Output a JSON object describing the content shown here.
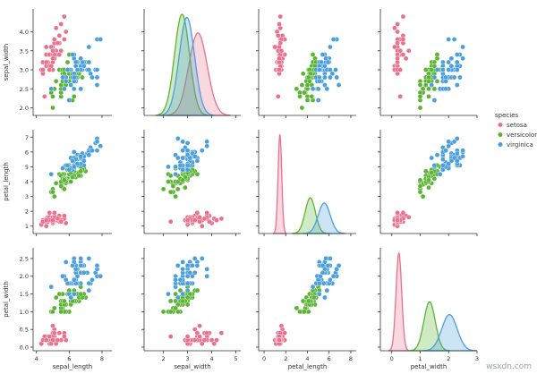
{
  "chart_data": {
    "type": "scatter",
    "kind": "pairplot",
    "hue_title": "species",
    "legend_placement": "right",
    "grid": false,
    "series": [
      {
        "name": "setosa",
        "color": "#e8728e"
      },
      {
        "name": "versicolor",
        "color": "#5bb434"
      },
      {
        "name": "virginica",
        "color": "#4b9fdb"
      }
    ],
    "variables": [
      {
        "name": "sepal_width",
        "range": [
          1.8,
          4.6
        ],
        "ticks": [
          "2.0",
          "2.5",
          "3.0",
          "3.5",
          "4.0"
        ],
        "tick_values": [
          2.0,
          2.5,
          3.0,
          3.5,
          4.0
        ]
      },
      {
        "name": "petal_length",
        "range": [
          0.5,
          7.5
        ],
        "ticks": [
          "1",
          "2",
          "3",
          "4",
          "5",
          "6",
          "7"
        ],
        "tick_values": [
          1,
          2,
          3,
          4,
          5,
          6,
          7
        ]
      },
      {
        "name": "petal_width",
        "range": [
          -0.1,
          2.8
        ],
        "ticks": [
          "0.0",
          "0.5",
          "1.0",
          "1.5",
          "2.0",
          "2.5"
        ],
        "tick_values": [
          0.0,
          0.5,
          1.0,
          1.5,
          2.0,
          2.5
        ]
      }
    ],
    "x_variables": [
      {
        "name": "sepal_length",
        "range": [
          3.8,
          8.6
        ],
        "ticks": [
          "4",
          "6",
          "8"
        ],
        "tick_values": [
          4,
          6,
          8
        ]
      },
      {
        "name": "sepal_width",
        "range": [
          1.2,
          5.2
        ],
        "ticks": [
          "2",
          "3",
          "4",
          "5"
        ],
        "tick_values": [
          2,
          3,
          4,
          5
        ]
      },
      {
        "name": "petal_length",
        "range": [
          -0.5,
          8.5
        ],
        "ticks": [
          "0",
          "2",
          "4",
          "6",
          "8"
        ],
        "tick_values": [
          0,
          2,
          4,
          6,
          8
        ]
      },
      {
        "name": "petal_width",
        "range": [
          -0.4,
          3.0
        ],
        "ticks": [
          "0",
          "1",
          "2",
          "3"
        ],
        "tick_values": [
          0,
          1,
          2,
          3
        ]
      }
    ],
    "density": {
      "sepal_width": [
        {
          "series": "setosa",
          "mean": 3.43,
          "sd": 0.38
        },
        {
          "series": "versicolor",
          "mean": 2.77,
          "sd": 0.31
        },
        {
          "series": "virginica",
          "mean": 2.97,
          "sd": 0.32
        }
      ],
      "petal_length": [
        {
          "series": "setosa",
          "mean": 1.46,
          "sd": 0.17
        },
        {
          "series": "versicolor",
          "mean": 4.26,
          "sd": 0.47
        },
        {
          "series": "virginica",
          "mean": 5.55,
          "sd": 0.55
        }
      ],
      "petal_width": [
        {
          "series": "setosa",
          "mean": 0.25,
          "sd": 0.1
        },
        {
          "series": "versicolor",
          "mean": 1.33,
          "sd": 0.2
        },
        {
          "series": "virginica",
          "mean": 2.03,
          "sd": 0.27
        }
      ]
    },
    "points": {
      "setosa": {
        "sepal_length": [
          5.1,
          4.9,
          4.7,
          4.6,
          5.0,
          5.4,
          4.6,
          5.0,
          4.4,
          4.9,
          5.4,
          4.8,
          4.8,
          4.3,
          5.8,
          5.7,
          5.4,
          5.1,
          5.7,
          5.1,
          5.4,
          5.1,
          4.6,
          5.1,
          4.8,
          5.0,
          5.0,
          5.2,
          5.2,
          4.7,
          4.8,
          5.4,
          5.2,
          5.5,
          4.9,
          5.0,
          5.5,
          4.9,
          4.4,
          5.1,
          5.0,
          4.5,
          4.4,
          5.0,
          5.1,
          4.8,
          5.1,
          4.6,
          5.3,
          5.0
        ],
        "sepal_width": [
          3.5,
          3.0,
          3.2,
          3.1,
          3.6,
          3.9,
          3.4,
          3.4,
          2.9,
          3.1,
          3.7,
          3.4,
          3.0,
          3.0,
          4.0,
          4.4,
          3.9,
          3.5,
          3.8,
          3.8,
          3.4,
          3.7,
          3.6,
          3.3,
          3.4,
          3.0,
          3.4,
          3.5,
          3.4,
          3.2,
          3.1,
          3.4,
          4.1,
          4.2,
          3.1,
          3.2,
          3.5,
          3.6,
          3.0,
          3.4,
          3.5,
          2.3,
          3.2,
          3.5,
          3.8,
          3.0,
          3.8,
          3.2,
          3.7,
          3.3
        ],
        "petal_length": [
          1.4,
          1.4,
          1.3,
          1.5,
          1.4,
          1.7,
          1.4,
          1.5,
          1.4,
          1.5,
          1.5,
          1.6,
          1.4,
          1.1,
          1.2,
          1.5,
          1.3,
          1.4,
          1.7,
          1.5,
          1.7,
          1.5,
          1.0,
          1.7,
          1.9,
          1.6,
          1.6,
          1.5,
          1.4,
          1.6,
          1.6,
          1.5,
          1.5,
          1.4,
          1.5,
          1.2,
          1.3,
          1.4,
          1.3,
          1.5,
          1.3,
          1.3,
          1.3,
          1.6,
          1.9,
          1.4,
          1.6,
          1.4,
          1.5,
          1.4
        ],
        "petal_width": [
          0.2,
          0.2,
          0.2,
          0.2,
          0.2,
          0.4,
          0.3,
          0.2,
          0.2,
          0.1,
          0.2,
          0.2,
          0.1,
          0.1,
          0.2,
          0.4,
          0.4,
          0.3,
          0.3,
          0.3,
          0.2,
          0.4,
          0.2,
          0.5,
          0.2,
          0.2,
          0.4,
          0.2,
          0.2,
          0.2,
          0.2,
          0.4,
          0.1,
          0.2,
          0.2,
          0.2,
          0.2,
          0.1,
          0.2,
          0.2,
          0.3,
          0.3,
          0.2,
          0.6,
          0.4,
          0.3,
          0.2,
          0.2,
          0.2,
          0.2
        ]
      },
      "versicolor": {
        "sepal_length": [
          7.0,
          6.4,
          6.9,
          5.5,
          6.5,
          5.7,
          6.3,
          4.9,
          6.6,
          5.2,
          5.0,
          5.9,
          6.0,
          6.1,
          5.6,
          6.7,
          5.6,
          5.8,
          6.2,
          5.6,
          5.9,
          6.1,
          6.3,
          6.1,
          6.4,
          6.6,
          6.8,
          6.7,
          6.0,
          5.7,
          5.5,
          5.5,
          5.8,
          6.0,
          5.4,
          6.0,
          6.7,
          6.3,
          5.6,
          5.5,
          5.5,
          6.1,
          5.8,
          5.0,
          5.6,
          5.7,
          5.7,
          6.2,
          5.1,
          5.7
        ],
        "sepal_width": [
          3.2,
          3.2,
          3.1,
          2.3,
          2.8,
          2.8,
          3.3,
          2.4,
          2.9,
          2.7,
          2.0,
          3.0,
          2.2,
          2.9,
          2.9,
          3.1,
          3.0,
          2.7,
          2.2,
          2.5,
          3.2,
          2.8,
          2.5,
          2.8,
          2.9,
          3.0,
          2.8,
          3.0,
          2.9,
          2.6,
          2.4,
          2.4,
          2.7,
          2.7,
          3.0,
          3.4,
          3.1,
          2.3,
          3.0,
          2.5,
          2.6,
          3.0,
          2.6,
          2.3,
          2.7,
          3.0,
          2.9,
          2.9,
          2.5,
          2.8
        ],
        "petal_length": [
          4.7,
          4.5,
          4.9,
          4.0,
          4.6,
          4.5,
          4.7,
          3.3,
          4.6,
          3.9,
          3.5,
          4.2,
          4.0,
          4.7,
          3.6,
          4.4,
          4.5,
          4.1,
          4.5,
          3.9,
          4.8,
          4.0,
          4.9,
          4.7,
          4.3,
          4.4,
          4.8,
          5.0,
          4.5,
          3.5,
          3.8,
          3.7,
          3.9,
          5.1,
          4.5,
          4.5,
          4.7,
          4.4,
          4.1,
          4.0,
          4.4,
          4.6,
          4.0,
          3.3,
          4.2,
          4.2,
          4.2,
          4.3,
          3.0,
          4.1
        ],
        "petal_width": [
          1.4,
          1.5,
          1.5,
          1.3,
          1.5,
          1.3,
          1.6,
          1.0,
          1.3,
          1.4,
          1.0,
          1.5,
          1.0,
          1.4,
          1.3,
          1.4,
          1.5,
          1.0,
          1.5,
          1.1,
          1.8,
          1.3,
          1.5,
          1.2,
          1.3,
          1.4,
          1.4,
          1.7,
          1.5,
          1.0,
          1.1,
          1.0,
          1.2,
          1.6,
          1.5,
          1.6,
          1.5,
          1.3,
          1.3,
          1.3,
          1.2,
          1.4,
          1.2,
          1.0,
          1.3,
          1.2,
          1.3,
          1.3,
          1.1,
          1.3
        ]
      },
      "virginica": {
        "sepal_length": [
          6.3,
          5.8,
          7.1,
          6.3,
          6.5,
          7.6,
          4.9,
          7.3,
          6.7,
          7.2,
          6.5,
          6.4,
          6.8,
          5.7,
          5.8,
          6.4,
          6.5,
          7.7,
          7.7,
          6.0,
          6.9,
          5.6,
          7.7,
          6.3,
          6.7,
          7.2,
          6.2,
          6.1,
          6.4,
          7.2,
          7.4,
          7.9,
          6.4,
          6.3,
          6.1,
          7.7,
          6.3,
          6.4,
          6.0,
          6.9,
          6.7,
          6.9,
          5.8,
          6.8,
          6.7,
          6.7,
          6.3,
          6.5,
          6.2,
          5.9
        ],
        "sepal_width": [
          3.3,
          2.7,
          3.0,
          2.9,
          3.0,
          3.0,
          2.5,
          2.9,
          2.5,
          3.6,
          3.2,
          2.7,
          3.0,
          2.5,
          2.8,
          3.2,
          3.0,
          3.8,
          2.6,
          2.2,
          3.2,
          2.8,
          2.8,
          2.7,
          3.3,
          3.2,
          2.8,
          3.0,
          2.8,
          3.0,
          2.8,
          3.8,
          2.8,
          2.8,
          2.6,
          3.0,
          3.4,
          3.1,
          3.0,
          3.1,
          3.1,
          3.1,
          2.7,
          3.2,
          3.3,
          3.0,
          2.5,
          3.0,
          3.4,
          3.0
        ],
        "petal_length": [
          6.0,
          5.1,
          5.9,
          5.6,
          5.8,
          6.6,
          4.5,
          6.3,
          5.8,
          6.1,
          5.1,
          5.3,
          5.5,
          5.0,
          5.1,
          5.3,
          5.5,
          6.7,
          6.9,
          5.0,
          5.7,
          4.9,
          6.7,
          4.9,
          5.7,
          6.0,
          4.8,
          4.9,
          5.6,
          5.8,
          6.1,
          6.4,
          5.6,
          5.1,
          5.6,
          6.1,
          5.6,
          5.5,
          4.8,
          5.4,
          5.6,
          5.1,
          5.1,
          5.9,
          5.7,
          5.2,
          5.0,
          5.2,
          5.4,
          5.1
        ],
        "petal_width": [
          2.5,
          1.9,
          2.1,
          1.8,
          2.2,
          2.1,
          1.7,
          1.8,
          1.8,
          2.5,
          2.0,
          1.9,
          2.1,
          2.0,
          2.4,
          2.3,
          1.8,
          2.2,
          2.3,
          1.5,
          2.3,
          2.0,
          2.0,
          1.8,
          2.1,
          1.8,
          1.8,
          1.8,
          2.1,
          1.6,
          1.9,
          2.0,
          2.2,
          1.5,
          1.4,
          2.3,
          2.4,
          1.8,
          1.8,
          2.1,
          2.4,
          2.3,
          1.9,
          2.3,
          2.5,
          2.3,
          1.9,
          2.0,
          2.3,
          1.8
        ]
      }
    }
  },
  "watermark": "wsxdn.com"
}
